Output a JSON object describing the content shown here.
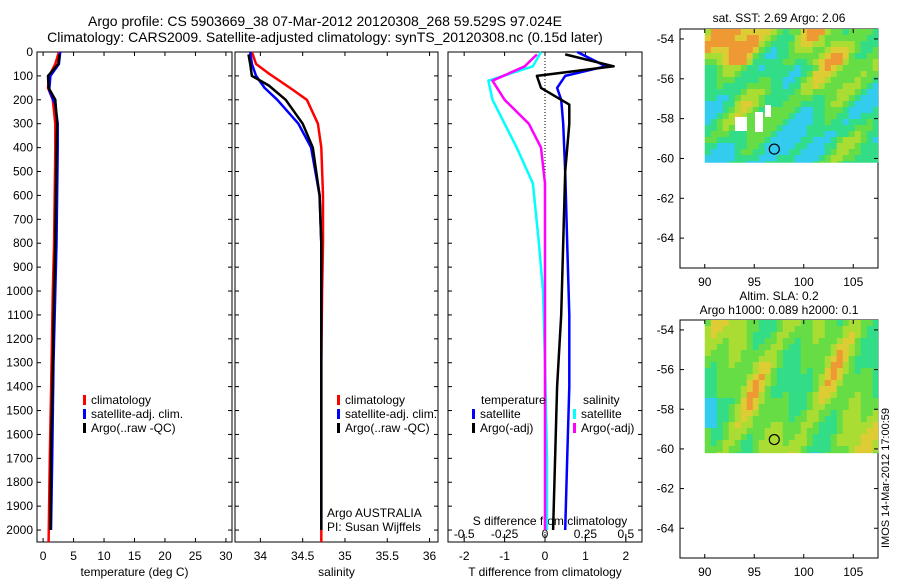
{
  "header": {
    "title_line1": "Argo profile: CS 5903669_38 07-Mar-2012 20120308_268 59.529S 97.024E",
    "title_line2": "Climatology: CARS2009. Satellite-adjusted climatology: synTS_20120308.nc (0.15d later)"
  },
  "timestamp": "IMOS 14-Mar-2012 17:00:59",
  "colors": {
    "climatology": "#ff0000",
    "satellite": "#0000ff",
    "argo": "#000000",
    "salinity_satellite": "#00ffff",
    "salinity_argo": "#ff00ff"
  },
  "chart_data": [
    {
      "type": "line",
      "id": "temperature",
      "xlabel": "temperature (deg C)",
      "ylabel": "",
      "xlim": [
        -1,
        31
      ],
      "ylim": [
        2050,
        0
      ],
      "xticks": [
        0,
        5,
        10,
        15,
        20,
        25,
        30
      ],
      "yticks": [
        0,
        100,
        200,
        300,
        400,
        500,
        600,
        700,
        800,
        900,
        1000,
        1100,
        1200,
        1300,
        1400,
        1500,
        1600,
        1700,
        1800,
        1900,
        2000
      ],
      "legend": [
        "climatology",
        "satellite-adj. clim.",
        "Argo(..raw -QC)"
      ],
      "series": [
        {
          "name": "climatology",
          "color": "#ff0000",
          "x": [
            2.6,
            2.0,
            1.0,
            0.8,
            1.6,
            2.0,
            2.0,
            1.9,
            1.8,
            1.6,
            1.4,
            1.1,
            0.9
          ],
          "y": [
            0,
            50,
            100,
            150,
            200,
            300,
            400,
            600,
            800,
            1000,
            1300,
            1700,
            2050
          ]
        },
        {
          "name": "satellite-adj. clim.",
          "color": "#0000ff",
          "x": [
            2.8,
            2.6,
            1.2,
            1.0,
            2.0,
            2.4,
            2.4,
            2.3,
            2.2,
            2.0,
            1.7,
            1.5,
            1.3
          ],
          "y": [
            0,
            50,
            100,
            160,
            220,
            300,
            400,
            600,
            800,
            1000,
            1300,
            1700,
            2000
          ]
        },
        {
          "name": "Argo(..raw -QC)",
          "color": "#000000",
          "x": [
            2.7,
            2.5,
            0.8,
            0.9,
            2.0,
            2.3,
            2.2,
            2.1,
            2.0,
            1.8,
            1.6,
            1.3,
            1.2
          ],
          "y": [
            10,
            50,
            100,
            150,
            200,
            300,
            400,
            600,
            800,
            1000,
            1300,
            1700,
            2000
          ]
        }
      ]
    },
    {
      "type": "line",
      "id": "salinity",
      "xlabel": "salinity",
      "ylabel": "",
      "xlim": [
        33.7,
        36.1
      ],
      "ylim": [
        2050,
        0
      ],
      "xticks": [
        34,
        34.5,
        35,
        35.5,
        36
      ],
      "xtick_labels": [
        "34",
        "34.5",
        "35",
        "35.5",
        "36"
      ],
      "legend": [
        "climatology",
        "satellite-adj. clim.",
        "Argo(..raw -QC)"
      ],
      "annotations": [
        "Argo AUSTRALIA",
        "PI: Susan Wijffels"
      ],
      "series": [
        {
          "name": "climatology",
          "color": "#ff0000",
          "x": [
            33.9,
            33.95,
            34.1,
            34.35,
            34.55,
            34.68,
            34.72,
            34.74,
            34.74,
            34.73,
            34.72,
            34.72,
            34.72
          ],
          "y": [
            0,
            50,
            90,
            150,
            200,
            300,
            400,
            600,
            800,
            1000,
            1300,
            1700,
            2050
          ]
        },
        {
          "name": "satellite-adj. clim.",
          "color": "#0000ff",
          "x": [
            33.88,
            33.9,
            33.95,
            34.05,
            34.2,
            34.45,
            34.6,
            34.7,
            34.72,
            34.72,
            34.72,
            34.72,
            34.72
          ],
          "y": [
            0,
            50,
            100,
            150,
            200,
            300,
            400,
            600,
            800,
            1000,
            1300,
            1700,
            2000
          ]
        },
        {
          "name": "Argo(..raw -QC)",
          "color": "#000000",
          "x": [
            33.86,
            33.88,
            33.9,
            34.1,
            34.3,
            34.5,
            34.62,
            34.7,
            34.72,
            34.72,
            34.72,
            34.72,
            34.72
          ],
          "y": [
            10,
            50,
            100,
            140,
            200,
            300,
            400,
            600,
            800,
            1000,
            1300,
            1700,
            2000
          ]
        }
      ]
    },
    {
      "type": "line",
      "id": "differences",
      "xlabel": "T difference from climatology",
      "xlabel_top": "S difference from climatology",
      "xlim": [
        -2.4,
        2.4
      ],
      "ylim": [
        2050,
        0
      ],
      "xticks": [
        -2,
        -1,
        0,
        1,
        2
      ],
      "xticks_salinity": [
        -0.5,
        -0.25,
        0,
        0.25,
        0.5
      ],
      "xtick_labels_salinity": [
        "-0.5",
        "-0.25",
        "0",
        "0.25",
        "0.5"
      ],
      "legend": {
        "temperature_heading": "temperature",
        "salinity_heading": "salinity",
        "items": [
          "satellite",
          "Argo(-adj)",
          "satellite",
          "Argo(-adj)"
        ]
      },
      "series": [
        {
          "name": "satellite",
          "group": "temperature",
          "color": "#0000ff",
          "x": [
            0.8,
            1.5,
            0.5,
            0.3,
            0.4,
            0.45,
            0.5,
            0.55,
            0.6,
            0.6,
            0.55,
            0.5
          ],
          "y": [
            0,
            60,
            100,
            150,
            200,
            300,
            500,
            800,
            1100,
            1400,
            1700,
            2000
          ]
        },
        {
          "name": "Argo(-adj)",
          "group": "temperature",
          "color": "#000000",
          "x": [
            0.5,
            1.7,
            -0.2,
            -0.1,
            0.6,
            0.6,
            0.5,
            0.45,
            0.4,
            0.3,
            0.25,
            0.2
          ],
          "y": [
            10,
            60,
            100,
            150,
            220,
            300,
            500,
            800,
            1100,
            1400,
            1700,
            2000
          ]
        },
        {
          "name": "satellite",
          "group": "salinity",
          "color": "#00ffff",
          "x": [
            -0.1,
            -0.3,
            -1.4,
            -1.3,
            -1.0,
            -0.7,
            -0.3,
            -0.15,
            -0.05,
            0.0,
            0.05,
            0.05
          ],
          "y": [
            0,
            60,
            120,
            200,
            300,
            400,
            550,
            800,
            1000,
            1300,
            1700,
            2000
          ]
        },
        {
          "name": "Argo(-adj)",
          "group": "salinity",
          "color": "#ff00ff",
          "x": [
            -0.2,
            -0.5,
            -1.3,
            -1.0,
            -0.4,
            -0.1,
            0.0,
            0.0,
            0.0,
            0.0,
            0.0,
            0.0
          ],
          "y": [
            10,
            60,
            120,
            200,
            300,
            400,
            550,
            800,
            1000,
            1300,
            1700,
            2000
          ]
        }
      ]
    },
    {
      "type": "heatmap",
      "id": "sst_map",
      "title": "sat. SST: 2.69 Argo: 2.06",
      "xlim": [
        87.5,
        107.5
      ],
      "ylim": [
        -65.5,
        -53.5
      ],
      "xticks": [
        90,
        95,
        100,
        105
      ],
      "yticks": [
        -54,
        -56,
        -58,
        -60,
        -62,
        -64
      ],
      "data_extent": {
        "lon": [
          90,
          107.5
        ],
        "lat": [
          -60.2,
          -53.5
        ]
      },
      "argo_position": {
        "lon": 97.024,
        "lat": -59.529
      }
    },
    {
      "type": "heatmap",
      "id": "sla_map",
      "title": "Altim. SLA: 0.2",
      "subtitle": "Argo h1000: 0.089 h2000: 0.1",
      "xlim": [
        87.5,
        107.5
      ],
      "ylim": [
        -65.5,
        -53.5
      ],
      "xticks": [
        90,
        95,
        100,
        105
      ],
      "yticks": [
        -54,
        -56,
        -58,
        -60,
        -62,
        -64
      ],
      "data_extent": {
        "lon": [
          90,
          107.5
        ],
        "lat": [
          -60.2,
          -53.5
        ]
      },
      "argo_position": {
        "lon": 97.024,
        "lat": -59.529
      }
    }
  ]
}
